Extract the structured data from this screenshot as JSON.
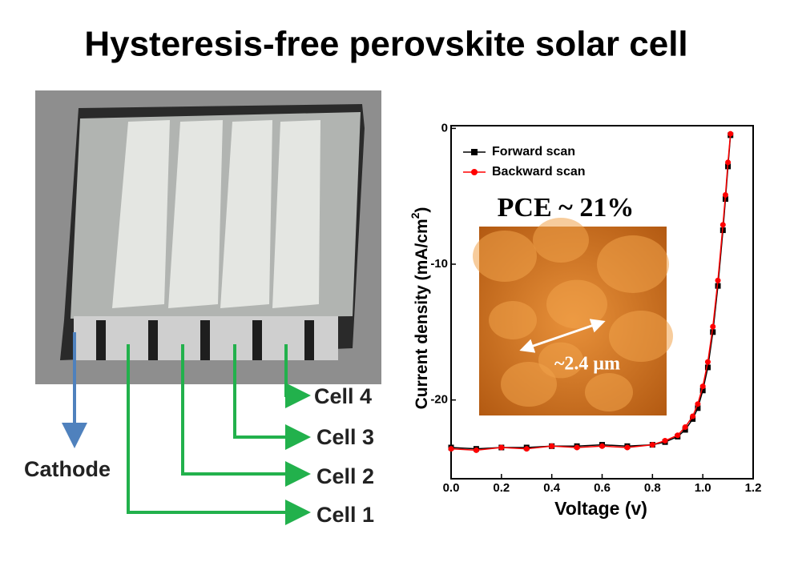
{
  "title": "Hysteresis-free perovskite solar cell",
  "device": {
    "cathode": "Cathode",
    "cells": [
      "Cell 1",
      "Cell 2",
      "Cell 3",
      "Cell 4"
    ]
  },
  "chart_data": {
    "type": "line",
    "x_label": "Voltage (v)",
    "y_label": [
      "Current density (mA/cm",
      "2",
      ")"
    ],
    "annotations": [
      "PCE ~ 21%",
      "~2.4 μm"
    ],
    "x": [
      0,
      0.1,
      0.2,
      0.3,
      0.4,
      0.5,
      0.6,
      0.7,
      0.8,
      0.85,
      0.9,
      0.93,
      0.96,
      0.98,
      1.0,
      1.02,
      1.04,
      1.06,
      1.08,
      1.09,
      1.1,
      1.11
    ],
    "series": [
      {
        "name": "Forward scan",
        "color": "#000000",
        "marker": "square",
        "values": [
          -23.5,
          -23.6,
          -23.5,
          -23.5,
          -23.4,
          -23.4,
          -23.3,
          -23.4,
          -23.3,
          -23.1,
          -22.7,
          -22.2,
          -21.4,
          -20.6,
          -19.3,
          -17.6,
          -15.0,
          -11.6,
          -7.5,
          -5.2,
          -2.8,
          -0.5
        ]
      },
      {
        "name": "Backward scan",
        "color": "#ff0000",
        "marker": "circle",
        "values": [
          -23.6,
          -23.7,
          -23.5,
          -23.6,
          -23.4,
          -23.5,
          -23.4,
          -23.5,
          -23.3,
          -23.0,
          -22.6,
          -22.0,
          -21.2,
          -20.3,
          -19.0,
          -17.2,
          -14.6,
          -11.2,
          -7.1,
          -4.9,
          -2.5,
          -0.4
        ]
      }
    ],
    "xlim": [
      0,
      1.2
    ],
    "ylim": [
      -25.8,
      0.2
    ],
    "xticks": [
      {
        "value": 0,
        "label": "0.0"
      },
      0.2,
      0.4,
      0.6,
      0.8,
      {
        "value": 1,
        "label": "1.0"
      },
      1.2
    ],
    "yticks": [
      0,
      -10,
      -20
    ],
    "legend": "top-left"
  }
}
